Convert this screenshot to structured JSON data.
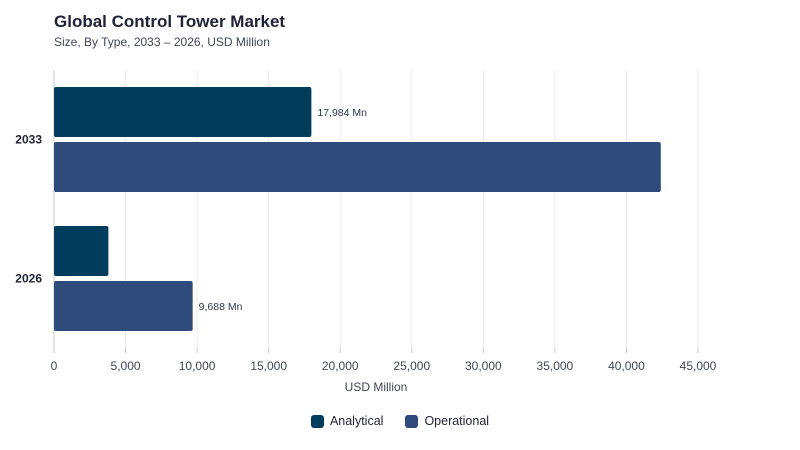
{
  "chart_data": {
    "type": "bar",
    "orientation": "horizontal",
    "title": "Global Control Tower Market",
    "subtitle": "Size, By Type, 2033 – 2026, USD Million",
    "xlabel": "USD Million",
    "ylabel": "",
    "xlim": [
      0,
      45000
    ],
    "xticks": [
      0,
      5000,
      10000,
      15000,
      20000,
      25000,
      30000,
      35000,
      40000,
      45000
    ],
    "xtick_labels": [
      "0",
      "5,000",
      "10,000",
      "15,000",
      "20,000",
      "25,000",
      "30,000",
      "35,000",
      "40,000",
      "45,000"
    ],
    "categories": [
      "2033",
      "2026"
    ],
    "series": [
      {
        "name": "Analytical",
        "color": "#003d5c",
        "values": [
          17984,
          3800
        ],
        "data_labels": [
          "17,984 Mn",
          ""
        ]
      },
      {
        "name": "Operational",
        "color": "#2f4b7c",
        "values": [
          42400,
          9688
        ],
        "data_labels": [
          "",
          "9,688 Mn"
        ]
      }
    ],
    "grid": true,
    "legend_position": "bottom-center"
  }
}
